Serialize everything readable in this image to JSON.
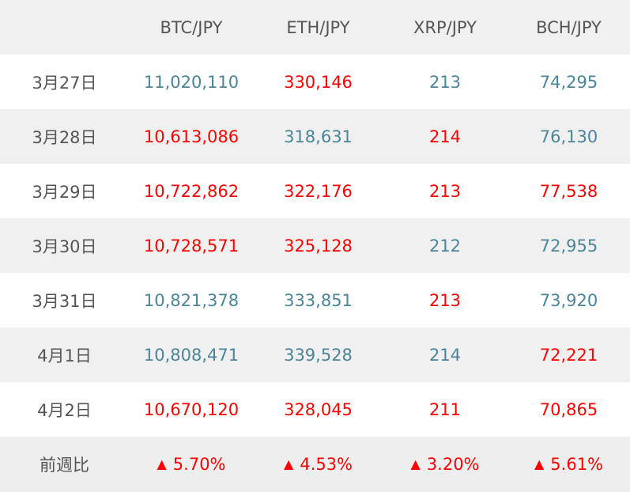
{
  "chart_data": {
    "type": "table",
    "columns": [
      "",
      "BTC/JPY",
      "ETH/JPY",
      "XRP/JPY",
      "BCH/JPY"
    ],
    "rows": [
      {
        "label": "3月27日",
        "cells": [
          {
            "text": "11,020,110",
            "value": 11020110,
            "trend": "down"
          },
          {
            "text": "330,146",
            "value": 330146,
            "trend": "up"
          },
          {
            "text": "213",
            "value": 213,
            "trend": "down"
          },
          {
            "text": "74,295",
            "value": 74295,
            "trend": "down"
          }
        ]
      },
      {
        "label": "3月28日",
        "cells": [
          {
            "text": "10,613,086",
            "value": 10613086,
            "trend": "up"
          },
          {
            "text": "318,631",
            "value": 318631,
            "trend": "down"
          },
          {
            "text": "214",
            "value": 214,
            "trend": "up"
          },
          {
            "text": "76,130",
            "value": 76130,
            "trend": "down"
          }
        ]
      },
      {
        "label": "3月29日",
        "cells": [
          {
            "text": "10,722,862",
            "value": 10722862,
            "trend": "up"
          },
          {
            "text": "322,176",
            "value": 322176,
            "trend": "up"
          },
          {
            "text": "213",
            "value": 213,
            "trend": "up"
          },
          {
            "text": "77,538",
            "value": 77538,
            "trend": "up"
          }
        ]
      },
      {
        "label": "3月30日",
        "cells": [
          {
            "text": "10,728,571",
            "value": 10728571,
            "trend": "up"
          },
          {
            "text": "325,128",
            "value": 325128,
            "trend": "up"
          },
          {
            "text": "212",
            "value": 212,
            "trend": "down"
          },
          {
            "text": "72,955",
            "value": 72955,
            "trend": "down"
          }
        ]
      },
      {
        "label": "3月31日",
        "cells": [
          {
            "text": "10,821,378",
            "value": 10821378,
            "trend": "down"
          },
          {
            "text": "333,851",
            "value": 333851,
            "trend": "down"
          },
          {
            "text": "213",
            "value": 213,
            "trend": "up"
          },
          {
            "text": "73,920",
            "value": 73920,
            "trend": "down"
          }
        ]
      },
      {
        "label": "4月1日",
        "cells": [
          {
            "text": "10,808,471",
            "value": 10808471,
            "trend": "down"
          },
          {
            "text": "339,528",
            "value": 339528,
            "trend": "down"
          },
          {
            "text": "214",
            "value": 214,
            "trend": "down"
          },
          {
            "text": "72,221",
            "value": 72221,
            "trend": "up"
          }
        ]
      },
      {
        "label": "4月2日",
        "cells": [
          {
            "text": "10,670,120",
            "value": 10670120,
            "trend": "up"
          },
          {
            "text": "328,045",
            "value": 328045,
            "trend": "up"
          },
          {
            "text": "211",
            "value": 211,
            "trend": "up"
          },
          {
            "text": "70,865",
            "value": 70865,
            "trend": "up"
          }
        ]
      }
    ],
    "summary": {
      "label": "前週比",
      "cells": [
        {
          "text": "5.70%",
          "value": 5.7,
          "trend": "up"
        },
        {
          "text": "4.53%",
          "value": 4.53,
          "trend": "up"
        },
        {
          "text": "3.20%",
          "value": 3.2,
          "trend": "up"
        },
        {
          "text": "5.61%",
          "value": 5.61,
          "trend": "up"
        }
      ],
      "marker": "▲"
    },
    "colors": {
      "up": "#ff0000",
      "down": "#4a8598",
      "header_background": "#f0f0f0",
      "label_text": "#555555"
    }
  }
}
